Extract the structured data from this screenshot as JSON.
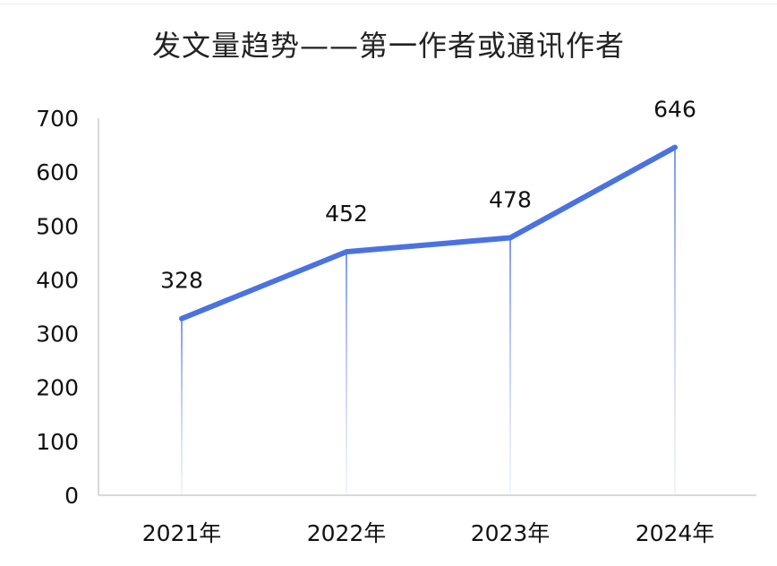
{
  "chart_data": {
    "type": "line",
    "title": "发文量趋势——第一作者或通讯作者",
    "categories": [
      "2021年",
      "2022年",
      "2023年",
      "2024年"
    ],
    "values": [
      328,
      452,
      478,
      646
    ],
    "data_labels": [
      "328",
      "452",
      "478",
      "646"
    ],
    "y_ticks": [
      "0",
      "100",
      "200",
      "300",
      "400",
      "500",
      "600",
      "700"
    ],
    "ylim": [
      0,
      700
    ],
    "xlabel": "",
    "ylabel": "",
    "grid": false,
    "legend": "none",
    "line_color": "#4a72e0",
    "drop_line_color": "#8ea6ee"
  }
}
